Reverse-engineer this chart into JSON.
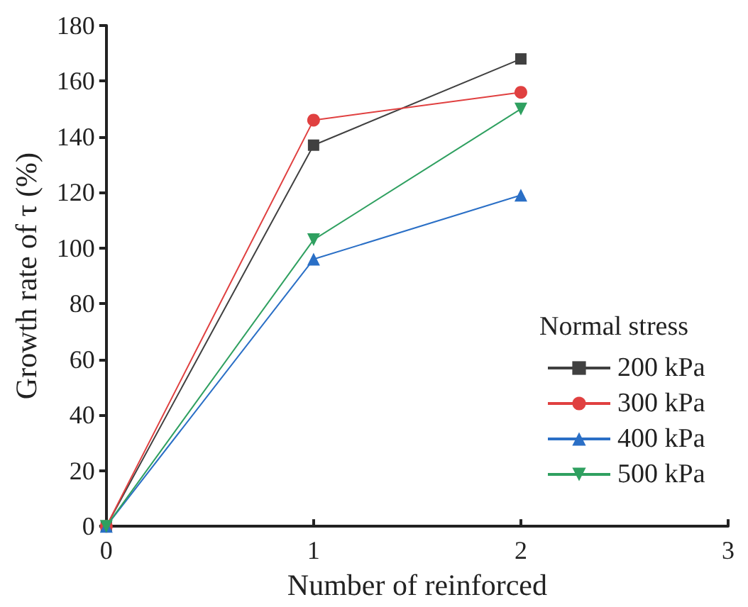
{
  "chart_data": {
    "type": "line",
    "xlabel": "Number of reinforced",
    "ylabel": "Growth rate of τ (%)",
    "legend_title": "Normal stress",
    "legend": "right",
    "grid": false,
    "x": [
      0,
      1,
      2
    ],
    "xlim": [
      0,
      3
    ],
    "xticks": [
      0,
      1,
      2,
      3
    ],
    "ylim": [
      0,
      180
    ],
    "yticks": [
      0,
      20,
      40,
      60,
      80,
      100,
      120,
      140,
      160,
      180
    ],
    "series": [
      {
        "name": "200 kPa",
        "color": "#404040",
        "marker": "square",
        "values": [
          0,
          137,
          168
        ]
      },
      {
        "name": "300 kPa",
        "color": "#e04040",
        "marker": "circle",
        "values": [
          0,
          146,
          156
        ]
      },
      {
        "name": "400 kPa",
        "color": "#2a6fc6",
        "marker": "triangle",
        "values": [
          0,
          96,
          119
        ]
      },
      {
        "name": "500 kPa",
        "color": "#2fa060",
        "marker": "triangle-down",
        "values": [
          0,
          103,
          150
        ]
      }
    ]
  }
}
